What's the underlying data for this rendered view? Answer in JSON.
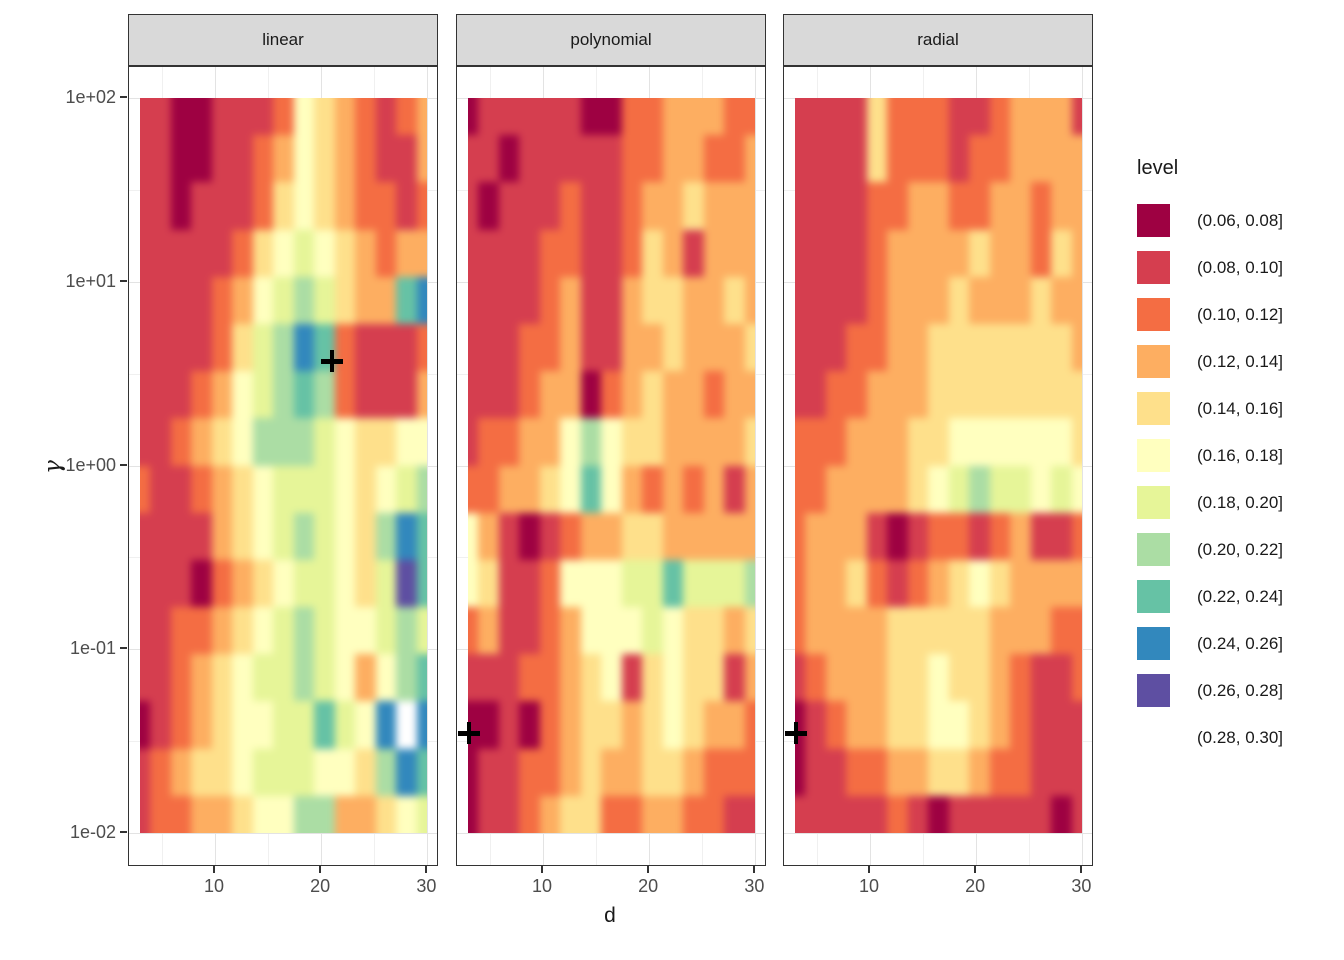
{
  "chart_data": {
    "type": "heatmap",
    "description": "Faceted filled-contour plot of cross-validated error level over hyperparameters d and gamma for three SVM kernels; black plus marks the best point per facet",
    "facets": [
      "linear",
      "polynomial",
      "radial"
    ],
    "xlabel": "d",
    "ylabel": "γ",
    "x_ticks": [
      "10",
      "20",
      "30"
    ],
    "y_tick_labels": [
      "1e+02",
      "1e+01",
      "1e+00",
      "1e-01",
      "1e-02"
    ],
    "y_tick_values": [
      100,
      10,
      1,
      0.1,
      0.01
    ],
    "x_range": [
      3,
      30
    ],
    "y_range": [
      0.01,
      100
    ],
    "y_scale": "log10",
    "grid_on": true,
    "legend_position": "right",
    "marker": "+",
    "marker_color": "#000000",
    "level_bin_width": 0.02,
    "levels_legend": {
      "title": "level",
      "labels": [
        "(0.06, 0.08]",
        "(0.08, 0.10]",
        "(0.10, 0.12]",
        "(0.12, 0.14]",
        "(0.14, 0.16]",
        "(0.16, 0.18]",
        "(0.18, 0.20]",
        "(0.20, 0.22]",
        "(0.22, 0.24]",
        "(0.24, 0.26]",
        "(0.26, 0.28]",
        "(0.28, 0.30]"
      ],
      "colors": [
        "#9E0142",
        "#D53E4F",
        "#F46D43",
        "#FDAE61",
        "#FEE08B",
        "#FFFFBF",
        "#E6F598",
        "#ABDDA4",
        "#66C2A5",
        "#3288BD",
        "#5E4FA2",
        "#FFFFFF"
      ],
      "bin_midpoints": [
        0.07,
        0.09,
        0.11,
        0.13,
        0.15,
        0.17,
        0.19,
        0.21,
        0.23,
        0.25,
        0.27,
        0.29
      ]
    },
    "grid_d": [
      3.9,
      5.7,
      7.5,
      9.3,
      11.1,
      12.9,
      14.7,
      16.5,
      18.3,
      20.1,
      21.9,
      23.7,
      25.5,
      27.3,
      29.1
    ],
    "grid_gamma": [
      75,
      42,
      24,
      13,
      7.5,
      4.2,
      2.4,
      1.3,
      0.75,
      0.42,
      0.24,
      0.13,
      0.075,
      0.042,
      0.024,
      0.013
    ],
    "series": [
      {
        "name": "linear",
        "levels": [
          [
            2,
            2,
            1,
            1,
            2,
            2,
            2,
            3,
            6,
            5,
            4,
            3,
            2,
            3,
            4
          ],
          [
            2,
            2,
            1,
            1,
            2,
            2,
            3,
            4,
            6,
            5,
            4,
            3,
            2,
            2,
            4
          ],
          [
            2,
            2,
            1,
            2,
            2,
            2,
            3,
            5,
            6,
            5,
            4,
            3,
            3,
            2,
            3
          ],
          [
            2,
            2,
            2,
            2,
            2,
            3,
            5,
            6,
            7,
            6,
            5,
            4,
            3,
            4,
            4
          ],
          [
            2,
            2,
            2,
            2,
            3,
            4,
            6,
            7,
            8,
            7,
            5,
            4,
            4,
            9,
            10
          ],
          [
            2,
            2,
            2,
            2,
            3,
            5,
            7,
            8,
            10,
            9,
            3,
            2,
            2,
            2,
            3
          ],
          [
            2,
            2,
            2,
            3,
            4,
            6,
            7,
            8,
            9,
            8,
            3,
            2,
            2,
            2,
            4
          ],
          [
            2,
            2,
            3,
            4,
            5,
            6,
            8,
            8,
            8,
            7,
            6,
            5,
            5,
            6,
            6
          ],
          [
            3,
            2,
            2,
            3,
            4,
            5,
            6,
            7,
            7,
            7,
            6,
            5,
            6,
            7,
            8
          ],
          [
            2,
            2,
            2,
            2,
            4,
            5,
            6,
            7,
            8,
            7,
            6,
            5,
            8,
            10,
            9
          ],
          [
            2,
            2,
            2,
            1,
            3,
            4,
            5,
            6,
            7,
            7,
            6,
            5,
            7,
            11,
            9
          ],
          [
            2,
            2,
            3,
            3,
            4,
            5,
            6,
            7,
            8,
            7,
            6,
            6,
            7,
            8,
            7
          ],
          [
            2,
            2,
            3,
            4,
            5,
            6,
            7,
            7,
            8,
            7,
            6,
            4,
            6,
            8,
            9
          ],
          [
            1,
            2,
            3,
            4,
            5,
            6,
            6,
            7,
            7,
            9,
            7,
            6,
            10,
            12,
            10
          ],
          [
            2,
            3,
            4,
            5,
            5,
            6,
            7,
            7,
            7,
            6,
            6,
            5,
            8,
            10,
            9
          ],
          [
            2,
            3,
            3,
            4,
            4,
            5,
            6,
            6,
            8,
            8,
            4,
            4,
            5,
            6,
            7
          ]
        ]
      },
      {
        "name": "polynomial",
        "levels": [
          [
            1,
            2,
            2,
            2,
            2,
            2,
            1,
            1,
            3,
            3,
            4,
            4,
            4,
            3,
            3
          ],
          [
            2,
            2,
            1,
            2,
            2,
            2,
            2,
            2,
            3,
            3,
            4,
            4,
            3,
            3,
            4
          ],
          [
            2,
            1,
            2,
            2,
            2,
            3,
            2,
            2,
            3,
            4,
            4,
            5,
            4,
            4,
            4
          ],
          [
            2,
            2,
            2,
            2,
            3,
            3,
            2,
            2,
            3,
            5,
            4,
            2,
            4,
            4,
            4
          ],
          [
            2,
            2,
            2,
            2,
            3,
            4,
            2,
            2,
            4,
            5,
            5,
            4,
            4,
            5,
            4
          ],
          [
            2,
            2,
            2,
            3,
            3,
            4,
            2,
            2,
            4,
            4,
            5,
            4,
            4,
            4,
            5
          ],
          [
            2,
            2,
            2,
            3,
            4,
            4,
            1,
            3,
            4,
            5,
            4,
            4,
            3,
            4,
            4
          ],
          [
            2,
            3,
            3,
            4,
            4,
            6,
            8,
            6,
            5,
            5,
            4,
            4,
            4,
            4,
            5
          ],
          [
            3,
            3,
            4,
            4,
            5,
            6,
            9,
            6,
            4,
            3,
            4,
            3,
            4,
            2,
            4
          ],
          [
            6,
            4,
            2,
            1,
            2,
            3,
            4,
            4,
            5,
            5,
            4,
            4,
            4,
            4,
            4
          ],
          [
            6,
            5,
            2,
            2,
            3,
            6,
            6,
            6,
            7,
            7,
            9,
            7,
            7,
            7,
            8
          ],
          [
            3,
            4,
            2,
            2,
            3,
            4,
            6,
            6,
            6,
            7,
            6,
            5,
            5,
            4,
            5
          ],
          [
            2,
            2,
            2,
            3,
            3,
            4,
            5,
            6,
            2,
            5,
            6,
            5,
            5,
            2,
            4
          ],
          [
            1,
            1,
            2,
            1,
            3,
            4,
            5,
            5,
            4,
            5,
            6,
            5,
            4,
            4,
            3
          ],
          [
            1,
            2,
            2,
            3,
            3,
            4,
            5,
            4,
            4,
            5,
            5,
            4,
            3,
            3,
            3
          ],
          [
            1,
            2,
            2,
            3,
            4,
            5,
            5,
            3,
            3,
            4,
            4,
            3,
            3,
            2,
            2
          ]
        ]
      },
      {
        "name": "radial",
        "levels": [
          [
            2,
            2,
            2,
            2,
            5,
            3,
            3,
            3,
            2,
            2,
            3,
            4,
            4,
            4,
            2
          ],
          [
            2,
            2,
            2,
            2,
            5,
            3,
            3,
            3,
            2,
            3,
            3,
            4,
            4,
            4,
            4
          ],
          [
            2,
            2,
            2,
            2,
            3,
            3,
            4,
            4,
            3,
            3,
            4,
            4,
            3,
            4,
            4
          ],
          [
            2,
            2,
            2,
            2,
            3,
            4,
            4,
            4,
            4,
            5,
            4,
            4,
            3,
            5,
            4
          ],
          [
            2,
            2,
            2,
            2,
            3,
            4,
            4,
            4,
            5,
            4,
            4,
            4,
            5,
            4,
            4
          ],
          [
            2,
            2,
            2,
            3,
            3,
            4,
            4,
            5,
            5,
            5,
            5,
            5,
            5,
            5,
            4
          ],
          [
            2,
            2,
            3,
            3,
            4,
            4,
            4,
            5,
            5,
            5,
            5,
            5,
            5,
            5,
            5
          ],
          [
            3,
            3,
            3,
            4,
            4,
            4,
            5,
            5,
            6,
            6,
            6,
            6,
            6,
            6,
            5
          ],
          [
            3,
            3,
            4,
            4,
            4,
            4,
            5,
            6,
            7,
            8,
            7,
            7,
            6,
            7,
            6
          ],
          [
            3,
            4,
            4,
            4,
            2,
            1,
            2,
            3,
            3,
            2,
            3,
            4,
            2,
            2,
            3
          ],
          [
            3,
            4,
            4,
            5,
            3,
            2,
            3,
            4,
            5,
            6,
            5,
            4,
            4,
            4,
            4
          ],
          [
            3,
            4,
            4,
            4,
            4,
            5,
            5,
            5,
            5,
            5,
            4,
            4,
            4,
            3,
            3
          ],
          [
            2,
            3,
            4,
            4,
            4,
            5,
            5,
            6,
            5,
            5,
            4,
            3,
            2,
            2,
            3
          ],
          [
            1,
            2,
            3,
            4,
            4,
            5,
            5,
            6,
            6,
            5,
            4,
            3,
            2,
            2,
            2
          ],
          [
            1,
            2,
            2,
            3,
            3,
            4,
            4,
            5,
            5,
            4,
            3,
            3,
            2,
            2,
            2
          ],
          [
            2,
            2,
            2,
            2,
            2,
            3,
            2,
            1,
            2,
            2,
            2,
            2,
            2,
            1,
            2
          ]
        ]
      }
    ],
    "best_points": [
      {
        "facet": "linear",
        "d": 21,
        "gamma": 3.7
      },
      {
        "facet": "polynomial",
        "d": 3,
        "gamma": 0.035
      },
      {
        "facet": "radial",
        "d": 3,
        "gamma": 0.035
      }
    ]
  }
}
